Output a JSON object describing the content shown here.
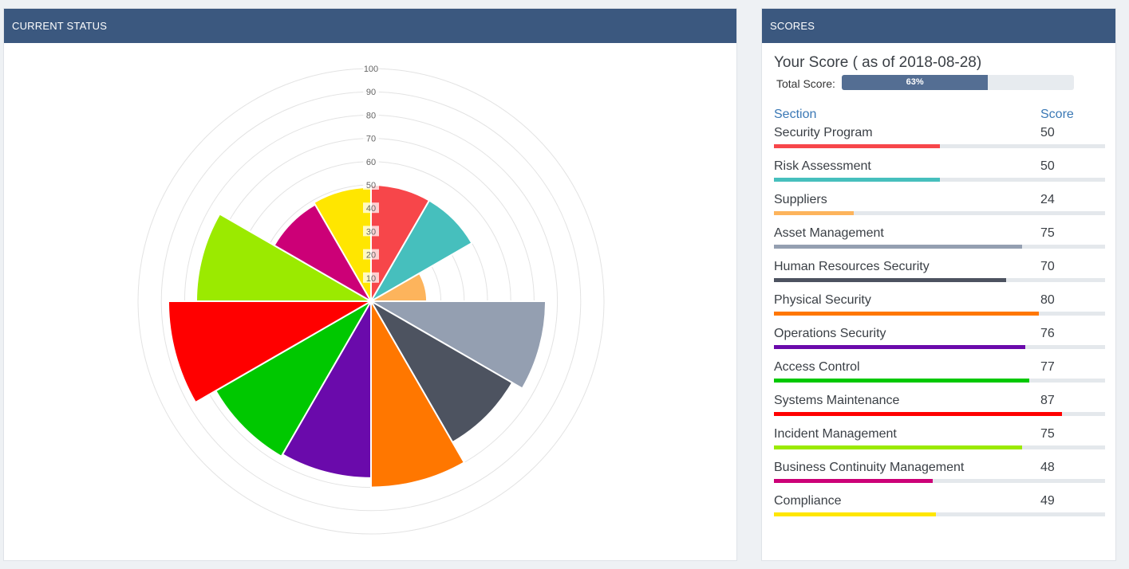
{
  "left_panel": {
    "title": "CURRENT STATUS"
  },
  "right_panel": {
    "title": "SCORES",
    "score_title": "Your Score ( as of 2018-08-28)",
    "total_label": "Total Score:",
    "total_value": 63,
    "total_text": "63%",
    "section_header": "Section",
    "score_header": "Score"
  },
  "chart_data": {
    "type": "polar-area",
    "r_ticks": [
      "10",
      "20",
      "30",
      "40",
      "50",
      "60",
      "70",
      "80",
      "90",
      "100"
    ],
    "r_max": 100,
    "grid": true,
    "categories": [
      "Security Program",
      "Risk Assessment",
      "Suppliers",
      "Asset Management",
      "Human Resources Security",
      "Physical Security",
      "Operations Security",
      "Access Control",
      "Systems Maintenance",
      "Incident Management",
      "Business Continuity Management",
      "Compliance"
    ],
    "values": [
      50,
      50,
      24,
      75,
      70,
      80,
      76,
      77,
      87,
      75,
      48,
      49
    ],
    "colors": [
      "#f7464a",
      "#46bfbd",
      "#fdb45c",
      "#949fb1",
      "#4d5360",
      "#ff7700",
      "#6a0aab",
      "#00c800",
      "#ff0000",
      "#9bea00",
      "#cc0077",
      "#ffe600"
    ]
  }
}
